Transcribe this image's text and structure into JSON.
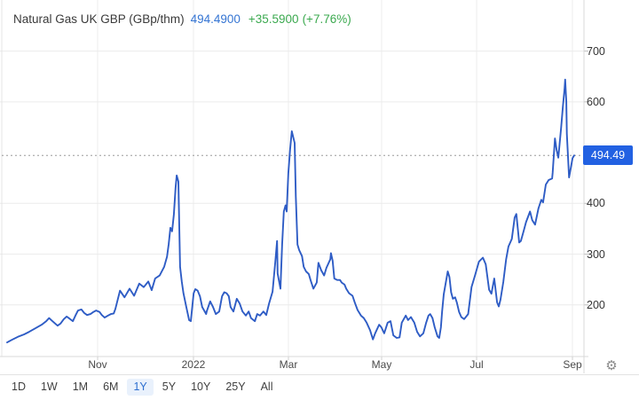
{
  "header": {
    "title": "Natural Gas UK GBP (GBp/thm)",
    "price": "494.4900",
    "change": "+35.5900",
    "change_pct": "(+7.76%)"
  },
  "icons": {
    "settings_glyph": "⚙"
  },
  "toolbar": {
    "ranges": [
      "1D",
      "1W",
      "1M",
      "6M",
      "1Y",
      "5Y",
      "10Y",
      "25Y",
      "All"
    ],
    "selected": "1Y"
  },
  "colors": {
    "line": "#2e5cc5",
    "badge_bg": "#2261e2",
    "price_text": "#3575d3",
    "change_text": "#3ba94f",
    "grid": "#ececec",
    "axis_border": "#d8d8d8",
    "dotted_line": "#9a9a9a",
    "selected_range": "#2e6fd0"
  },
  "chart_data": {
    "type": "line",
    "title": "Natural Gas UK GBP (GBp/thm)",
    "unit": "GBp/thm",
    "last_price": 494.49,
    "price_label": "494.49",
    "change": "+35.5900",
    "change_pct": "+7.76%",
    "ylim": [
      100,
      750
    ],
    "y_ticks": [
      700,
      600,
      400,
      300,
      200
    ],
    "x_ticks": [
      {
        "label": "Nov",
        "pos": 15.96
      },
      {
        "label": "2022",
        "pos": 32.86
      },
      {
        "label": "Mar",
        "pos": 49.61
      },
      {
        "label": "May",
        "pos": 66.04
      },
      {
        "label": "Jul",
        "pos": 82.79
      },
      {
        "label": "Sep",
        "pos": 99.69
      }
    ],
    "grid": true,
    "legend": false,
    "series": [
      {
        "name": "Natural Gas UK GBP",
        "points": [
          [
            0,
            126
          ],
          [
            0.8,
            131
          ],
          [
            1.9,
            137
          ],
          [
            3,
            142
          ],
          [
            3.9,
            147
          ],
          [
            5,
            154
          ],
          [
            6.1,
            161
          ],
          [
            6.9,
            168
          ],
          [
            7.4,
            174
          ],
          [
            7.8,
            170
          ],
          [
            8.5,
            163
          ],
          [
            8.9,
            159
          ],
          [
            9.4,
            163
          ],
          [
            10,
            172
          ],
          [
            10.5,
            177
          ],
          [
            11,
            173
          ],
          [
            11.6,
            168
          ],
          [
            12.1,
            180
          ],
          [
            12.5,
            189
          ],
          [
            13.1,
            191
          ],
          [
            13.6,
            184
          ],
          [
            14.1,
            180
          ],
          [
            14.7,
            182
          ],
          [
            15.2,
            186
          ],
          [
            15.7,
            189
          ],
          [
            16.3,
            186
          ],
          [
            16.7,
            180
          ],
          [
            17.2,
            175
          ],
          [
            17.8,
            179
          ],
          [
            18.3,
            182
          ],
          [
            18.8,
            183
          ],
          [
            19.1,
            192
          ],
          [
            19.9,
            228
          ],
          [
            20.7,
            215
          ],
          [
            21.6,
            232
          ],
          [
            22.4,
            218
          ],
          [
            23.3,
            242
          ],
          [
            24.1,
            235
          ],
          [
            24.9,
            246
          ],
          [
            25.5,
            229
          ],
          [
            26.1,
            252
          ],
          [
            26.9,
            258
          ],
          [
            27.7,
            275
          ],
          [
            28.2,
            295
          ],
          [
            28.5,
            320
          ],
          [
            28.8,
            352
          ],
          [
            29.1,
            345
          ],
          [
            29.4,
            378
          ],
          [
            29.7,
            430
          ],
          [
            29.9,
            455
          ],
          [
            30.2,
            443
          ],
          [
            30.4,
            328
          ],
          [
            30.5,
            275
          ],
          [
            30.8,
            246
          ],
          [
            31.1,
            223
          ],
          [
            31.6,
            196
          ],
          [
            32.1,
            170
          ],
          [
            32.4,
            168
          ],
          [
            32.9,
            223
          ],
          [
            33.2,
            231
          ],
          [
            33.6,
            228
          ],
          [
            34,
            217
          ],
          [
            34.4,
            196
          ],
          [
            35.1,
            182
          ],
          [
            35.2,
            187
          ],
          [
            35.8,
            207
          ],
          [
            36.3,
            196
          ],
          [
            36.8,
            182
          ],
          [
            37.4,
            187
          ],
          [
            37.9,
            217
          ],
          [
            38.3,
            225
          ],
          [
            38.7,
            223
          ],
          [
            39.1,
            217
          ],
          [
            39.4,
            196
          ],
          [
            39.9,
            187
          ],
          [
            40.5,
            212
          ],
          [
            41,
            203
          ],
          [
            41.5,
            187
          ],
          [
            42.1,
            179
          ],
          [
            42.6,
            187
          ],
          [
            43,
            174
          ],
          [
            43.7,
            168
          ],
          [
            44.1,
            182
          ],
          [
            44.6,
            179
          ],
          [
            45.2,
            187
          ],
          [
            45.7,
            180
          ],
          [
            46.2,
            203
          ],
          [
            46.8,
            226
          ],
          [
            47.3,
            285
          ],
          [
            47.6,
            326
          ],
          [
            47.7,
            262
          ],
          [
            48.2,
            232
          ],
          [
            48.5,
            319
          ],
          [
            48.8,
            384
          ],
          [
            49.1,
            396
          ],
          [
            49.3,
            384
          ],
          [
            49.6,
            460
          ],
          [
            49.9,
            507
          ],
          [
            50.2,
            542
          ],
          [
            50.7,
            519
          ],
          [
            50.9,
            414
          ],
          [
            51.2,
            319
          ],
          [
            51.5,
            308
          ],
          [
            52,
            296
          ],
          [
            52.3,
            275
          ],
          [
            52.7,
            266
          ],
          [
            53.2,
            261
          ],
          [
            53.5,
            249
          ],
          [
            54,
            232
          ],
          [
            54.6,
            244
          ],
          [
            54.9,
            283
          ],
          [
            55.4,
            268
          ],
          [
            55.9,
            258
          ],
          [
            56.3,
            273
          ],
          [
            57,
            290
          ],
          [
            57.1,
            302
          ],
          [
            57.4,
            287
          ],
          [
            57.7,
            252
          ],
          [
            58.2,
            249
          ],
          [
            58.7,
            249
          ],
          [
            59,
            244
          ],
          [
            59.5,
            240
          ],
          [
            59.8,
            232
          ],
          [
            60.3,
            223
          ],
          [
            60.9,
            218
          ],
          [
            61.3,
            205
          ],
          [
            61.8,
            190
          ],
          [
            62.4,
            179
          ],
          [
            62.9,
            174
          ],
          [
            63.4,
            165
          ],
          [
            64,
            150
          ],
          [
            64.5,
            132
          ],
          [
            64.9,
            144
          ],
          [
            65.6,
            161
          ],
          [
            66,
            156
          ],
          [
            66.5,
            144
          ],
          [
            67.1,
            165
          ],
          [
            67.6,
            168
          ],
          [
            68.1,
            140
          ],
          [
            68.7,
            135
          ],
          [
            69.2,
            136
          ],
          [
            69.6,
            165
          ],
          [
            70.3,
            179
          ],
          [
            70.7,
            170
          ],
          [
            71.2,
            176
          ],
          [
            71.8,
            165
          ],
          [
            72.3,
            147
          ],
          [
            72.8,
            138
          ],
          [
            73.4,
            144
          ],
          [
            73.9,
            165
          ],
          [
            74.3,
            179
          ],
          [
            74.6,
            182
          ],
          [
            75,
            174
          ],
          [
            75.4,
            156
          ],
          [
            75.9,
            138
          ],
          [
            76.2,
            135
          ],
          [
            76.5,
            156
          ],
          [
            76.7,
            186
          ],
          [
            77,
            221
          ],
          [
            77.3,
            240
          ],
          [
            77.7,
            266
          ],
          [
            78,
            255
          ],
          [
            78.3,
            225
          ],
          [
            78.6,
            212
          ],
          [
            79,
            215
          ],
          [
            79.3,
            205
          ],
          [
            79.7,
            186
          ],
          [
            80.1,
            176
          ],
          [
            80.6,
            172
          ],
          [
            81.3,
            182
          ],
          [
            81.9,
            235
          ],
          [
            82.5,
            258
          ],
          [
            83.2,
            285
          ],
          [
            83.9,
            293
          ],
          [
            84.4,
            280
          ],
          [
            85,
            230
          ],
          [
            85.4,
            222
          ],
          [
            85.9,
            252
          ],
          [
            86.4,
            205
          ],
          [
            86.7,
            197
          ],
          [
            87,
            210
          ],
          [
            87.5,
            245
          ],
          [
            88,
            290
          ],
          [
            88.4,
            315
          ],
          [
            89,
            330
          ],
          [
            89.5,
            372
          ],
          [
            89.8,
            379
          ],
          [
            90.3,
            323
          ],
          [
            90.6,
            326
          ],
          [
            91.1,
            346
          ],
          [
            91.5,
            363
          ],
          [
            92.2,
            384
          ],
          [
            92.6,
            367
          ],
          [
            93.1,
            358
          ],
          [
            93.7,
            390
          ],
          [
            94.2,
            407
          ],
          [
            94.5,
            402
          ],
          [
            95,
            437
          ],
          [
            95.5,
            446
          ],
          [
            96.1,
            449
          ],
          [
            96.2,
            460
          ],
          [
            96.6,
            528
          ],
          [
            96.9,
            505
          ],
          [
            97.2,
            490
          ],
          [
            97.7,
            550
          ],
          [
            98,
            590
          ],
          [
            98.3,
            625
          ],
          [
            98.4,
            644
          ],
          [
            98.6,
            600
          ],
          [
            98.7,
            537
          ],
          [
            99.1,
            451
          ],
          [
            99.4,
            470
          ],
          [
            99.7,
            489
          ],
          [
            100,
            494.49
          ]
        ]
      }
    ]
  }
}
